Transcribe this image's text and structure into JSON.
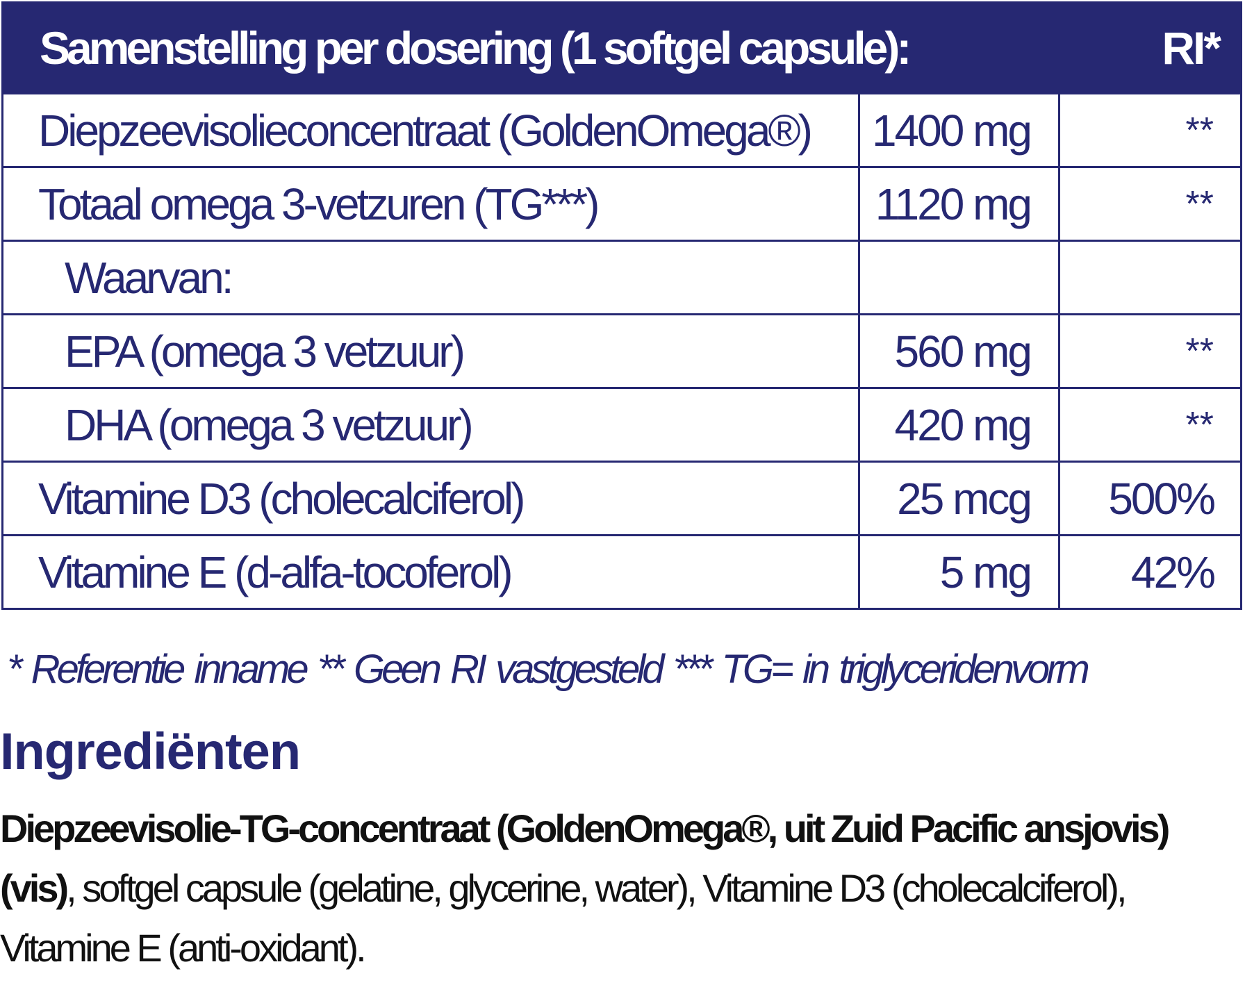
{
  "table": {
    "header": {
      "title": "Samenstelling per dosering (1 softgel capsule):",
      "ri": "RI*"
    },
    "rows": [
      {
        "name": "Diepzeevisolieconcentraat (GoldenOmega®)",
        "amount": "1400 mg",
        "ri": "**"
      },
      {
        "name": "Totaal omega 3-vetzuren (TG***)",
        "amount": "1120 mg",
        "ri": "**"
      },
      {
        "name": "Waarvan:",
        "amount": "",
        "ri": ""
      },
      {
        "name": "EPA (omega 3 vetzuur)",
        "amount": "560 mg",
        "ri": "**"
      },
      {
        "name": "DHA (omega 3 vetzuur)",
        "amount": "420 mg",
        "ri": "**"
      },
      {
        "name": "Vitamine D3 (cholecalciferol)",
        "amount": "25 mcg",
        "ri": "500%"
      },
      {
        "name": "Vitamine E (d-alfa-tocoferol)",
        "amount": "5 mg",
        "ri": "42%"
      }
    ]
  },
  "footnote": "* Referentie inname  ** Geen RI vastgesteld *** TG= in triglyceridenvorm",
  "ingredients": {
    "heading": "Ingrediënten",
    "bold_part": "Diepzeevisolie-TG-concentraat (GoldenOmega®, uit Zuid Pacific ansjovis) (vis)",
    "line1_bold": "Diepzeevisolie-TG-concentraat (GoldenOmega®, uit Zuid Pacific",
    "line2_bold": "ansjovis) (vis)",
    "line2_rest": ", softgel capsule (gelatine, glycerine, water), Vitamine D3",
    "line3": "(cholecalciferol), Vitamine E (anti-oxidant)."
  },
  "colors": {
    "brand": "#262872",
    "text": "#111111"
  }
}
